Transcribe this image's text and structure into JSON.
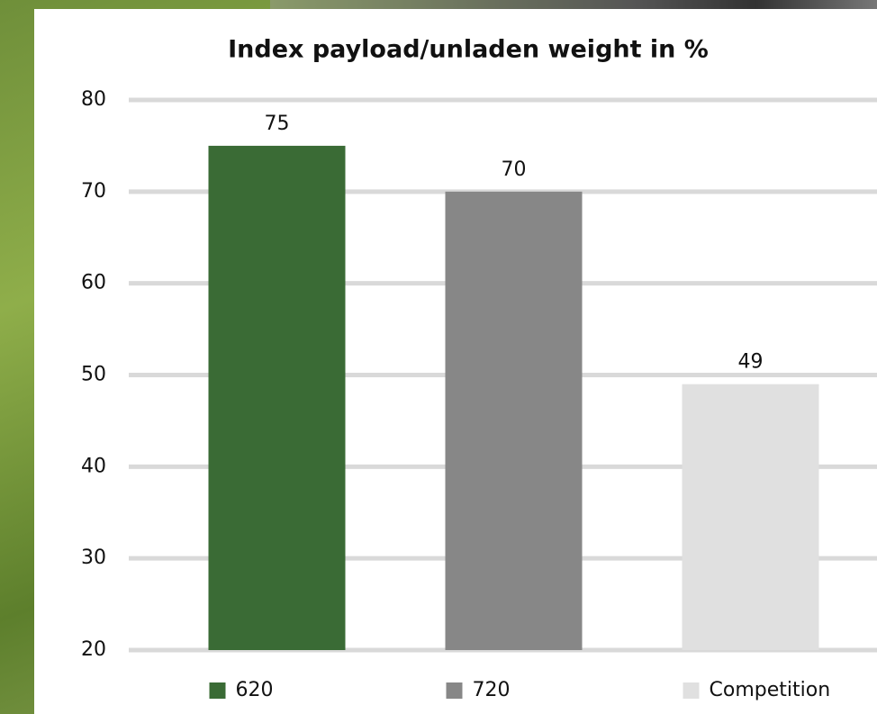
{
  "chart_data": {
    "type": "bar",
    "title": "Index payload/unladen weight in %",
    "categories": [
      "620",
      "720",
      "Competition"
    ],
    "values": [
      75,
      70,
      49
    ],
    "colors": [
      "#3a6b35",
      "#878787",
      "#e0e0e0"
    ],
    "ylim": [
      20,
      80
    ],
    "yticks": [
      20,
      30,
      40,
      50,
      60,
      70,
      80
    ],
    "grid": true,
    "legend": "bottom"
  }
}
